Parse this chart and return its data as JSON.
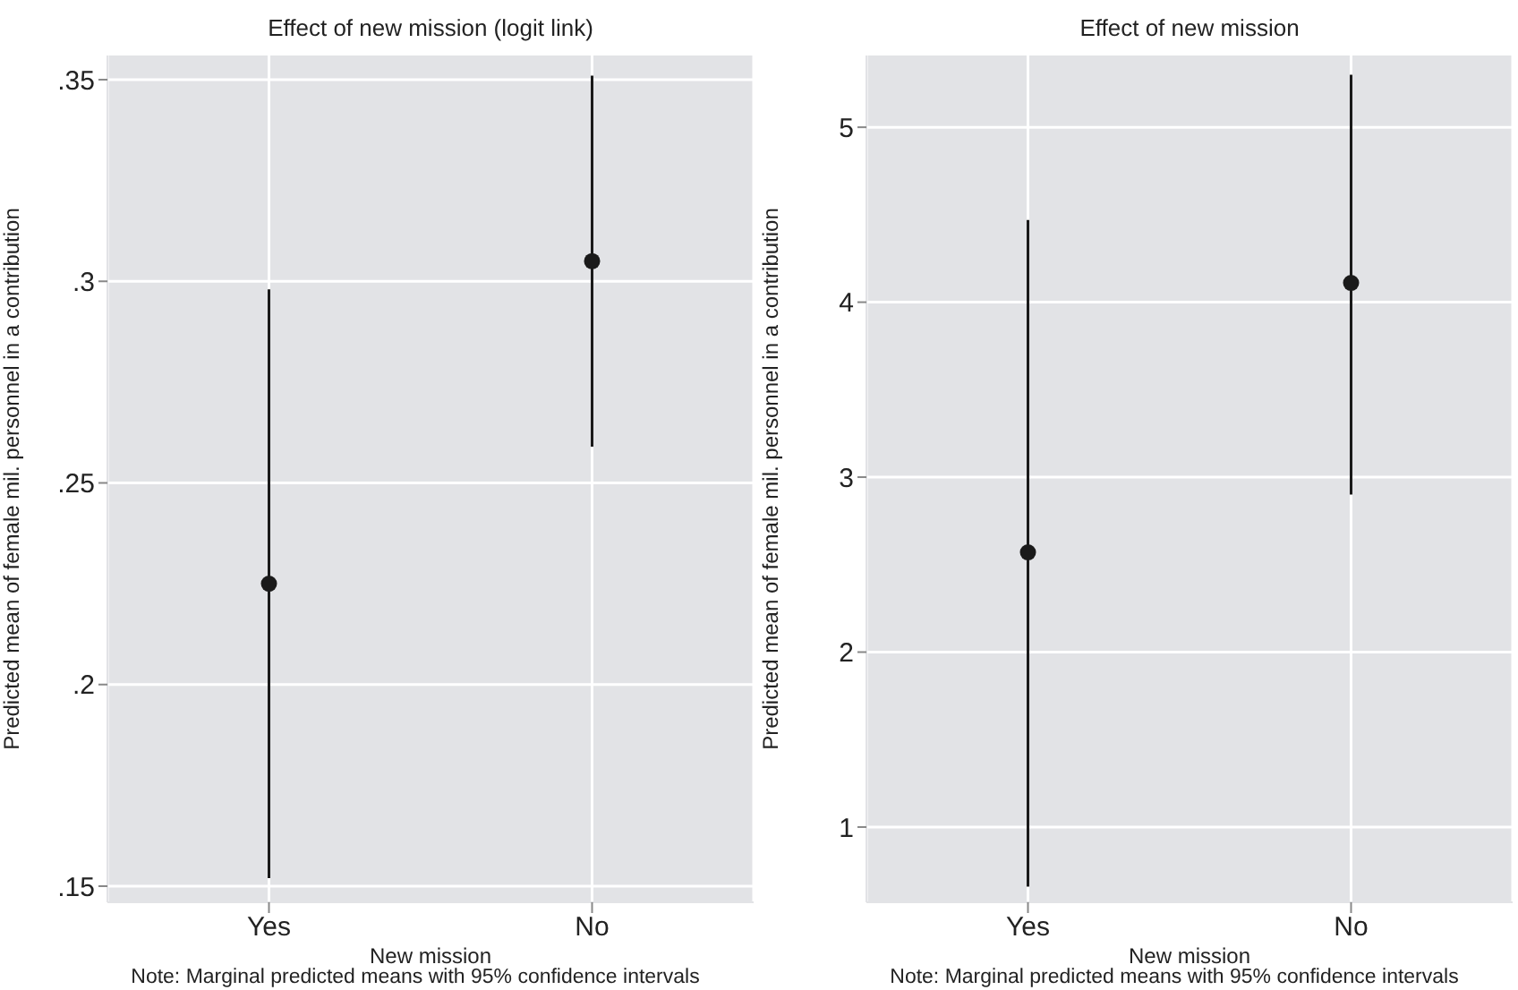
{
  "chart_data": [
    {
      "type": "scatter",
      "title": "Effect of new mission (logit link)",
      "xlabel": "New mission",
      "ylabel": "Predicted mean of female mil. personnel in a contribution",
      "annotations": [
        "Note: Marginal predicted means with 95% confidence intervals"
      ],
      "categories": [
        "Yes",
        "No"
      ],
      "values": [
        0.225,
        0.305
      ],
      "errors": [
        [
          0.152,
          0.298
        ],
        [
          0.259,
          0.351
        ]
      ],
      "ylim": [
        0.146,
        0.356
      ],
      "yticks": [
        {
          "value": 0.15,
          "label": ".15"
        },
        {
          "value": 0.2,
          "label": ".2"
        },
        {
          "value": 0.25,
          "label": ".25"
        },
        {
          "value": 0.3,
          "label": ".3"
        },
        {
          "value": 0.35,
          "label": ".35"
        }
      ],
      "color": "#1a1a1a",
      "marker": "circle",
      "grid": true
    },
    {
      "type": "scatter",
      "title": "Effect of new mission",
      "xlabel": "New mission",
      "ylabel": "Predicted mean of female mil. personnel in a contribution",
      "annotations": [
        "Note: Marginal predicted means with 95% confidence intervals"
      ],
      "categories": [
        "Yes",
        "No"
      ],
      "values": [
        2.57,
        4.11
      ],
      "errors": [
        [
          0.66,
          4.47
        ],
        [
          2.9,
          5.3
        ]
      ],
      "ylim": [
        0.57,
        5.41
      ],
      "yticks": [
        1,
        2,
        3,
        4,
        5
      ],
      "color": "#1a1a1a",
      "marker": "circle",
      "grid": true
    }
  ]
}
